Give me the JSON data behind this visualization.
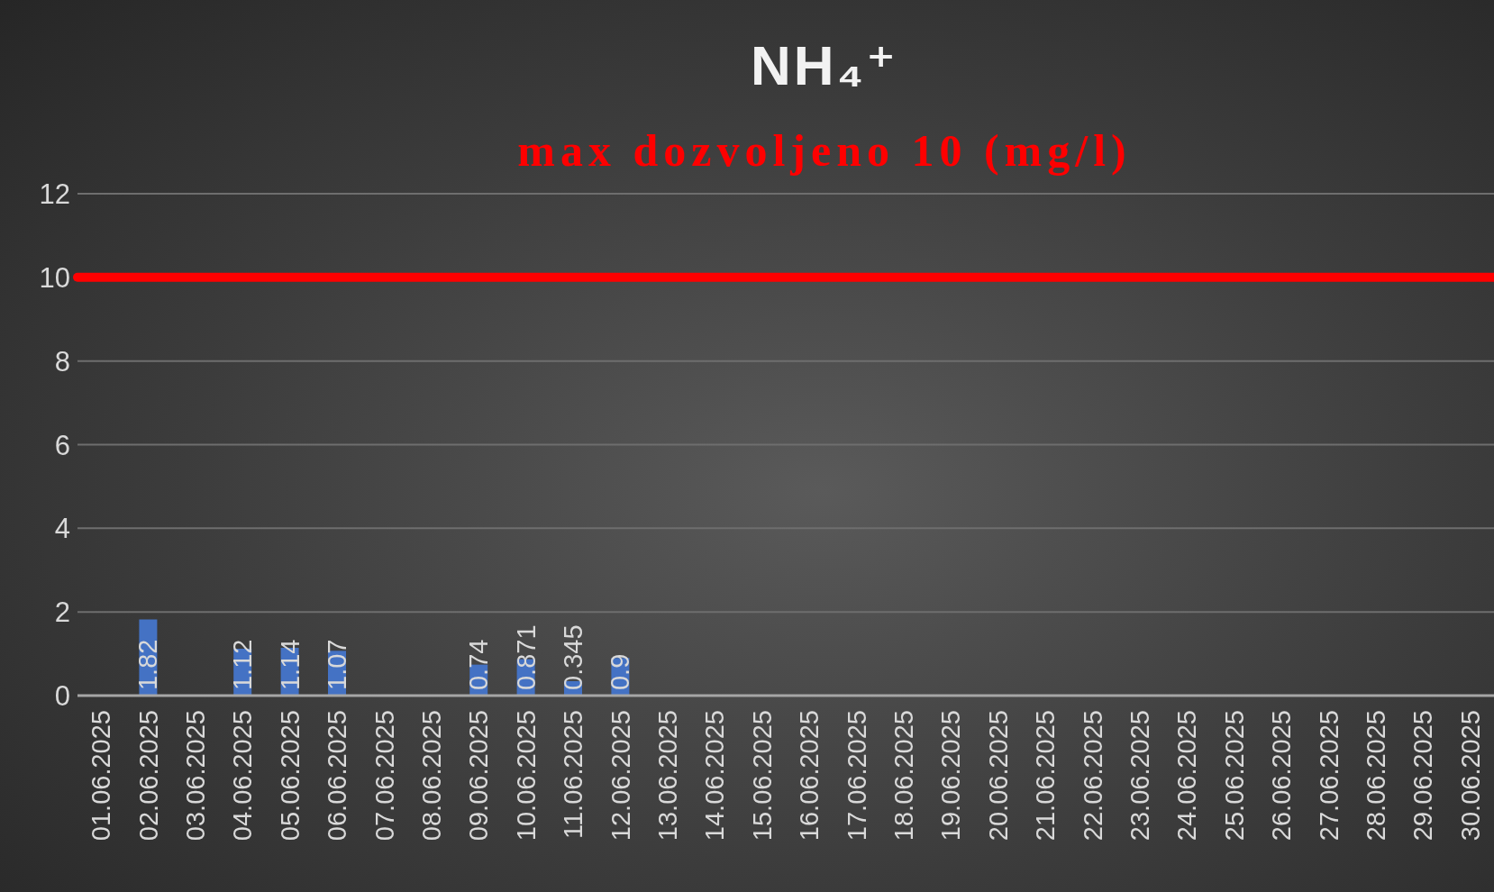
{
  "chart_data": {
    "type": "bar",
    "title": "NH₄⁺",
    "subtitle": "max dozvoljeno 10 (mg/l)",
    "categories": [
      "01.06.2025",
      "02.06.2025",
      "03.06.2025",
      "04.06.2025",
      "05.06.2025",
      "06.06.2025",
      "07.06.2025",
      "08.06.2025",
      "09.06.2025",
      "10.06.2025",
      "11.06.2025",
      "12.06.2025",
      "13.06.2025",
      "14.06.2025",
      "15.06.2025",
      "16.06.2025",
      "17.06.2025",
      "18.06.2025",
      "19.06.2025",
      "20.06.2025",
      "21.06.2025",
      "22.06.2025",
      "23.06.2025",
      "24.06.2025",
      "25.06.2025",
      "26.06.2025",
      "27.06.2025",
      "28.06.2025",
      "29.06.2025",
      "30.06.2025"
    ],
    "values": [
      null,
      1.82,
      null,
      1.12,
      1.14,
      1.07,
      null,
      null,
      0.74,
      0.871,
      0.345,
      0.9,
      null,
      null,
      null,
      null,
      null,
      null,
      null,
      null,
      null,
      null,
      null,
      null,
      null,
      null,
      null,
      null,
      null,
      null
    ],
    "color": "#4472c4",
    "ylim": [
      0,
      12
    ],
    "yticks": [
      0,
      2,
      4,
      6,
      8,
      10,
      12
    ],
    "grid": "y",
    "data_labels": true,
    "ref_lines": [
      {
        "axis": "y",
        "value": 10,
        "color": "#ff0000"
      }
    ]
  }
}
